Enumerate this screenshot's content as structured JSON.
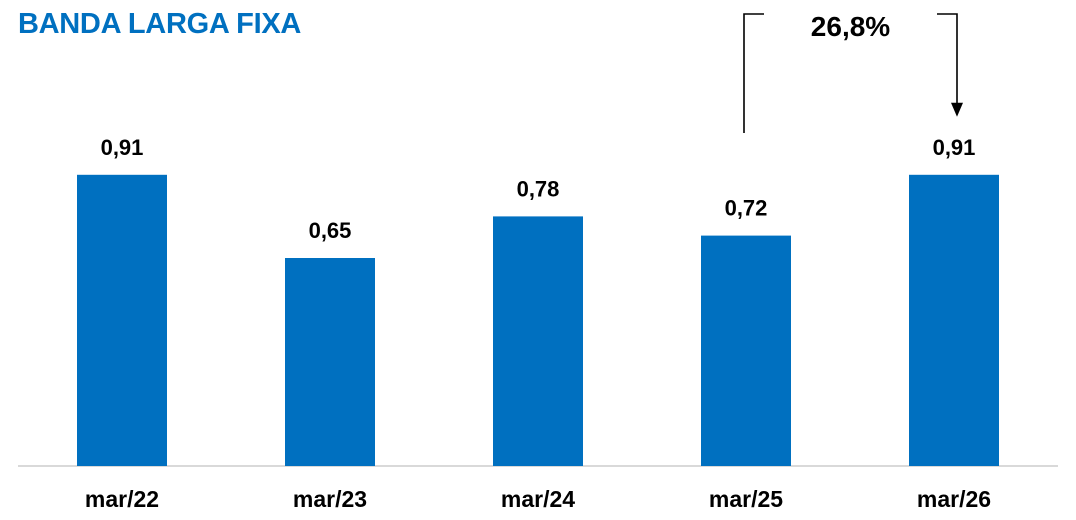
{
  "colors": {
    "title": "#0070C0",
    "bar": "#0070C0",
    "axis": "#D9D9D9",
    "text": "#000000"
  },
  "chart_data": {
    "type": "bar",
    "title": "BANDA LARGA FIXA",
    "categories": [
      "mar/22",
      "mar/23",
      "mar/24",
      "mar/25",
      "mar/26"
    ],
    "values": [
      0.91,
      0.65,
      0.78,
      0.72,
      0.91
    ],
    "value_labels": [
      "0,91",
      "0,65",
      "0,78",
      "0,72",
      "0,91"
    ],
    "ylim": [
      0,
      1.0
    ],
    "grid": false,
    "annotation": {
      "text": "26,8%",
      "from": "mar/25",
      "to": "mar/26"
    }
  }
}
